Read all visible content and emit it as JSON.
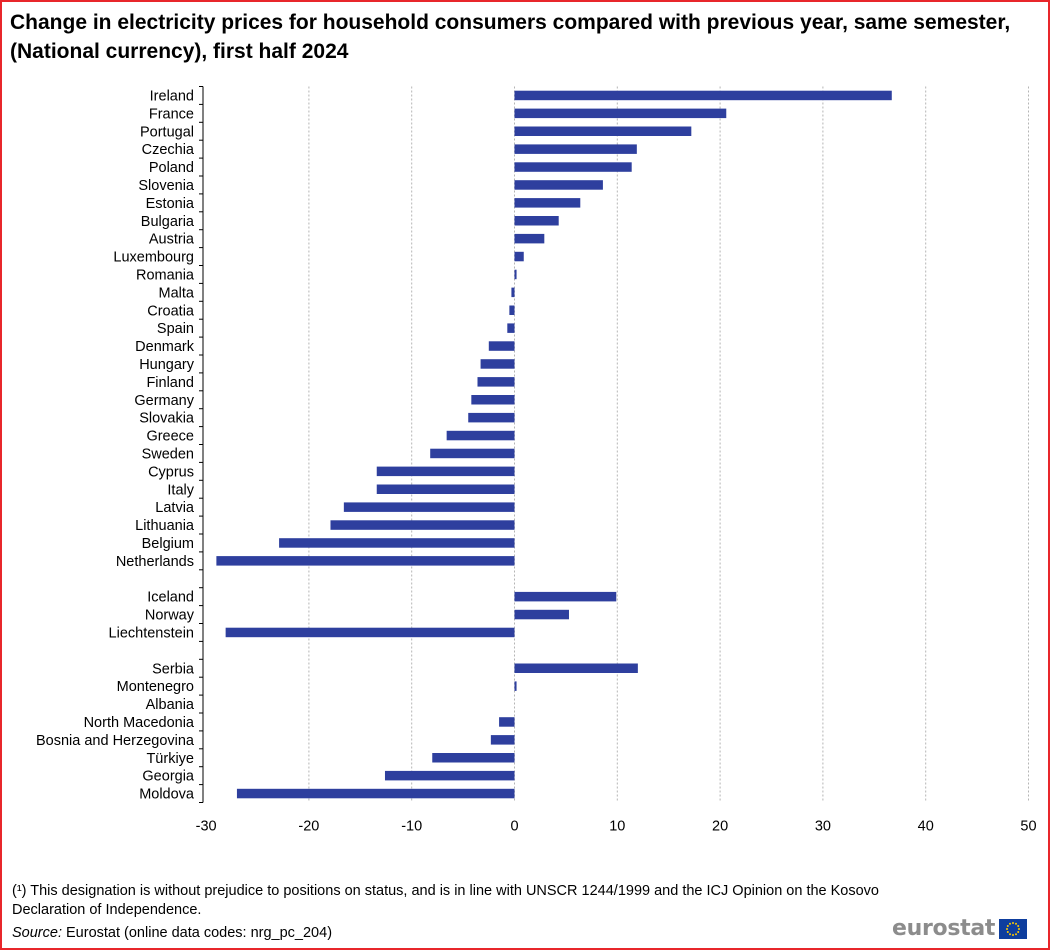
{
  "title": "Change in electricity prices for household consumers compared with previous year, same semester, (National currency), first half 2024",
  "footnote": "(¹) This designation is without prejudice to positions on status, and is in line with UNSCR  1244/1999 and the ICJ Opinion on the Kosovo Declaration of Independence.",
  "source": {
    "label": "Source:",
    "text": " Eurostat (online data codes: nrg_pc_204)"
  },
  "logo": {
    "text": "eurostat",
    "icon": "eu-flag-icon"
  },
  "colors": {
    "bar": "#2e3f9e",
    "frame": "#e8262b",
    "grid": "#b5b5b5"
  },
  "chart_data": {
    "type": "bar",
    "orientation": "horizontal",
    "xlim": [
      -30,
      50
    ],
    "xticks": [
      -30,
      -20,
      -10,
      0,
      10,
      20,
      30,
      40,
      50
    ],
    "grid": "vertical-dotted",
    "groups": [
      {
        "categories": [
          "Ireland",
          "France",
          "Portugal",
          "Czechia",
          "Poland",
          "Slovenia",
          "Estonia",
          "Bulgaria",
          "Austria",
          "Luxembourg",
          "Romania",
          "Malta",
          "Croatia",
          "Spain",
          "Denmark",
          "Hungary",
          "Finland",
          "Germany",
          "Slovakia",
          "Greece",
          "Sweden",
          "Cyprus",
          "Italy",
          "Latvia",
          "Lithuania",
          "Belgium",
          "Netherlands"
        ],
        "values": [
          36.7,
          20.6,
          17.2,
          11.9,
          11.4,
          8.6,
          6.4,
          4.3,
          2.9,
          0.9,
          0.2,
          -0.3,
          -0.5,
          -0.7,
          -2.5,
          -3.3,
          -3.6,
          -4.2,
          -4.5,
          -6.6,
          -8.2,
          -13.4,
          -13.4,
          -16.6,
          -17.9,
          -22.9,
          -29.0
        ]
      },
      {
        "categories": [
          "Iceland",
          "Norway",
          "Liechtenstein"
        ],
        "values": [
          9.9,
          5.3,
          -28.1
        ]
      },
      {
        "categories": [
          "Serbia",
          "Montenegro",
          "Albania",
          "North Macedonia",
          "Bosnia and Herzegovina",
          "Türkiye",
          "Georgia",
          "Moldova"
        ],
        "values": [
          12.0,
          0.2,
          0.0,
          -1.5,
          -2.3,
          -8.0,
          -12.6,
          -27.0
        ]
      }
    ]
  }
}
